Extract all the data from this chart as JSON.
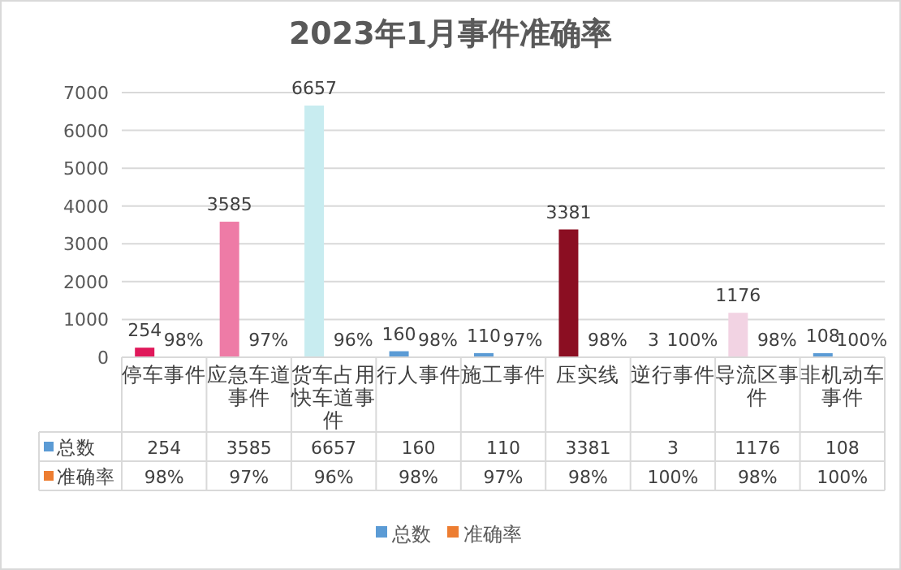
{
  "chart_data": {
    "type": "bar",
    "title": "2023年1月事件准确率",
    "categories": [
      "停车事件",
      "应急车道事件",
      "货车占用快车道事件",
      "行人事件",
      "施工事件",
      "压实线",
      "逆行事件",
      "导流区事件",
      "非机动车事件"
    ],
    "series": [
      {
        "name": "总数",
        "color": "#5b9bd5",
        "colors": [
          "#e0185a",
          "#ee7ba6",
          "#c8ecf0",
          "#5b9bd5",
          "#5b9bd5",
          "#8b0e22",
          "#5b9bd5",
          "#f2d3e3",
          "#5b9bd5"
        ],
        "values": [
          254,
          3585,
          6657,
          160,
          110,
          3381,
          3,
          1176,
          108
        ],
        "value_labels": [
          "254",
          "3585",
          "6657",
          "160",
          "110",
          "3381",
          "3",
          "1176",
          "108"
        ]
      },
      {
        "name": "准确率",
        "color": "#ed7d31",
        "values": [
          0.98,
          0.97,
          0.96,
          0.98,
          0.97,
          0.98,
          1.0,
          0.98,
          1.0
        ],
        "value_labels": [
          "98%",
          "97%",
          "96%",
          "98%",
          "97%",
          "98%",
          "100%",
          "98%",
          "100%"
        ]
      }
    ],
    "ylim": [
      0,
      7000
    ],
    "yticks": [
      0,
      1000,
      2000,
      3000,
      4000,
      5000,
      6000,
      7000
    ],
    "grid": "y",
    "legend": "bottom"
  }
}
